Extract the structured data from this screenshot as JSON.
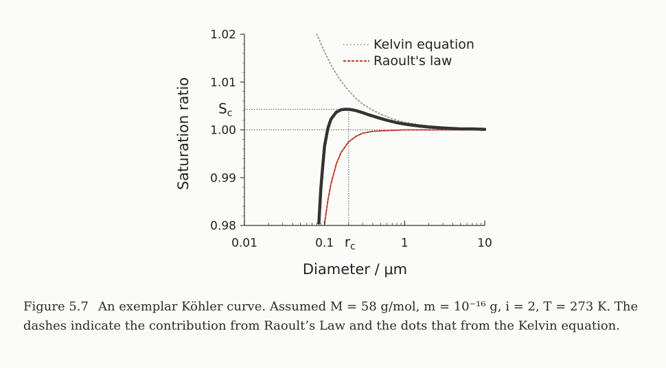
{
  "caption": {
    "figure_number": "Figure 5.7",
    "text": "An exemplar Köhler curve. Assumed M = 58 g/mol, m = 10⁻¹⁶ g, i = 2, T = 273 K. The dashes indicate the contribution from Raoult’s Law and the dots that from the Kelvin equation."
  },
  "chart_data": {
    "type": "line",
    "xlabel": "Diameter / μm",
    "ylabel": "Saturation ratio",
    "xscale": "log",
    "xlim": [
      0.01,
      10
    ],
    "ylim": [
      0.98,
      1.02
    ],
    "x_ticks": [
      0.01,
      0.1,
      1,
      10
    ],
    "x_tick_labels": [
      "0.01",
      "0.1",
      "1",
      "10"
    ],
    "y_ticks": [
      0.98,
      0.99,
      1.0,
      1.01,
      1.02
    ],
    "y_tick_labels": [
      "0.98",
      "0.99",
      "1.00",
      "1.01",
      "1.02"
    ],
    "legend_position": "top-right",
    "series": [
      {
        "name": "Kelvin equation",
        "style": "dotted",
        "color": "#9aa39a",
        "x": [
          0.08,
          0.09,
          0.1,
          0.12,
          0.15,
          0.2,
          0.25,
          0.3,
          0.4,
          0.5,
          0.7,
          1.0,
          1.5,
          2.0,
          3.0,
          5.0,
          7.0,
          10.0
        ],
        "y": [
          1.0204,
          1.0181,
          1.0163,
          1.0136,
          1.0109,
          1.0082,
          1.0065,
          1.0054,
          1.0041,
          1.0033,
          1.0023,
          1.0016,
          1.0011,
          1.0008,
          1.0005,
          1.0003,
          1.0002,
          1.0002
        ]
      },
      {
        "name": "Raoult's law",
        "style": "dashed",
        "color": "#c0392b",
        "x": [
          0.1,
          0.11,
          0.12,
          0.14,
          0.16,
          0.2,
          0.25,
          0.3,
          0.4,
          0.5,
          0.7,
          1.0,
          2.0,
          5.0,
          10.0
        ],
        "y": [
          0.9803,
          0.9852,
          0.9886,
          0.9928,
          0.9952,
          0.9975,
          0.9987,
          0.9993,
          0.9997,
          0.9998,
          0.9999,
          1.0,
          1.0,
          1.0,
          1.0
        ]
      },
      {
        "name": "",
        "style": "solid",
        "color": "#333333",
        "x": [
          0.085,
          0.09,
          0.095,
          0.1,
          0.11,
          0.12,
          0.14,
          0.16,
          0.18,
          0.2,
          0.22,
          0.25,
          0.3,
          0.35,
          0.4,
          0.5,
          0.6,
          0.8,
          1.0,
          1.5,
          2.0,
          3.0,
          5.0,
          7.0,
          10.0
        ],
        "y": [
          0.9805,
          0.9877,
          0.9925,
          0.9966,
          1.0003,
          1.0022,
          1.0037,
          1.0042,
          1.0043,
          1.0043,
          1.0042,
          1.004,
          1.0036,
          1.0032,
          1.0029,
          1.0024,
          1.002,
          1.0015,
          1.0012,
          1.0008,
          1.0006,
          1.0004,
          1.0002,
          1.0002,
          1.0001
        ]
      }
    ],
    "reference_lines": [
      {
        "label": "Sc",
        "orientation": "horizontal",
        "value": 1.0043,
        "style": "dotted"
      },
      {
        "label": "",
        "orientation": "horizontal",
        "value": 1.0,
        "style": "dotted"
      },
      {
        "label": "rc",
        "orientation": "vertical",
        "value": 0.2,
        "style": "dotted"
      }
    ]
  }
}
